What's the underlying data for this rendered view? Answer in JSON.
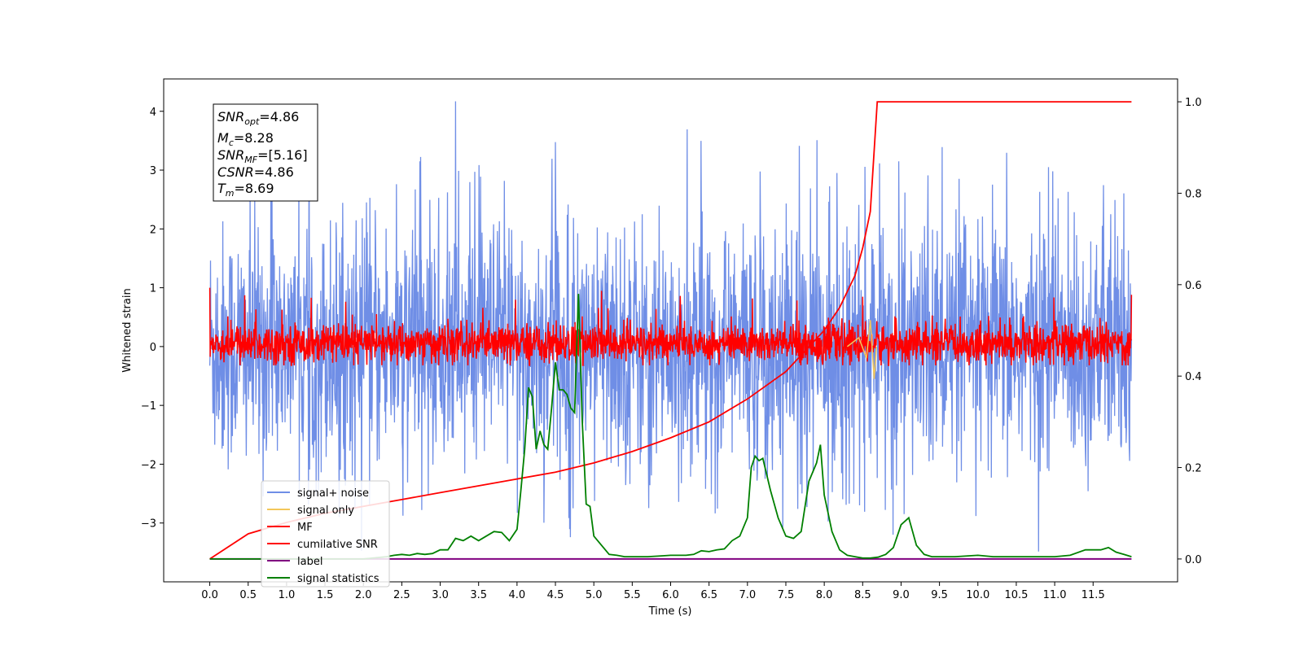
{
  "chart_data": {
    "type": "line",
    "xlabel": "Time (s)",
    "ylabel": "Whitened strain",
    "xlim": [
      -0.6,
      12.6
    ],
    "ylim": [
      -4.0,
      4.55
    ],
    "y2lim": [
      -0.05,
      1.05
    ],
    "xticks": [
      0.0,
      0.5,
      1.0,
      1.5,
      2.0,
      2.5,
      3.0,
      3.5,
      4.0,
      4.5,
      5.0,
      5.5,
      6.0,
      6.5,
      7.0,
      7.5,
      8.0,
      8.5,
      9.0,
      9.5,
      10.0,
      10.5,
      11.0,
      11.5
    ],
    "xtick_labels": [
      "0.0",
      "0.5",
      "1.0",
      "1.5",
      "2.0",
      "2.5",
      "3.0",
      "3.5",
      "4.0",
      "4.5",
      "5.0",
      "5.5",
      "6.0",
      "6.5",
      "7.0",
      "7.5",
      "8.0",
      "8.5",
      "9.0",
      "9.5",
      "10.0",
      "10.5",
      "11.0",
      "11.5"
    ],
    "yticks": [
      -3,
      -2,
      -1,
      0,
      1,
      2,
      3,
      4
    ],
    "ytick_labels": [
      "−3",
      "−2",
      "−1",
      "0",
      "1",
      "2",
      "3",
      "4"
    ],
    "y2ticks": [
      0.0,
      0.2,
      0.4,
      0.6,
      0.8,
      1.0
    ],
    "y2tick_labels": [
      "0.0",
      "0.2",
      "0.4",
      "0.6",
      "0.8",
      "1.0"
    ],
    "grid": false,
    "legend_position": "bottom-left",
    "colors": {
      "signal_noise": "#6f8ee6",
      "signal_only": "#f3c75a",
      "mf": "#ff0000",
      "cumulative_snr": "#ff0000",
      "label": "#800080",
      "signal_statistics": "#008000"
    },
    "series": [
      {
        "name": "signal+ noise",
        "axis": "left",
        "approx": "noise band, envelope approx -2.5 to 2.5 with spikes to 4.17 at 3.2 s"
      },
      {
        "name": "signal only",
        "axis": "left",
        "x": [
          8.3,
          8.45,
          8.55,
          8.6,
          8.65,
          8.68
        ],
        "values": [
          0.0,
          0.15,
          -0.2,
          0.45,
          -0.55,
          0.0
        ]
      },
      {
        "name": "MF",
        "axis": "left",
        "approx": "noise band, envelope approx -0.3 to 0.5 with spikes near 1.0"
      },
      {
        "name": "cumilative SNR",
        "axis": "right",
        "x": [
          0.0,
          0.5,
          1.0,
          1.5,
          2.0,
          2.5,
          3.0,
          3.5,
          4.0,
          4.5,
          5.0,
          5.5,
          6.0,
          6.5,
          7.0,
          7.5,
          8.0,
          8.2,
          8.4,
          8.5,
          8.6,
          8.69,
          12.0
        ],
        "values": [
          0.0,
          0.055,
          0.08,
          0.1,
          0.115,
          0.13,
          0.145,
          0.16,
          0.175,
          0.19,
          0.21,
          0.235,
          0.265,
          0.3,
          0.35,
          0.41,
          0.5,
          0.55,
          0.62,
          0.68,
          0.76,
          1.0,
          1.0
        ]
      },
      {
        "name": "label",
        "axis": "right",
        "x": [
          0.0,
          12.0
        ],
        "values": [
          0.0,
          0.0
        ]
      },
      {
        "name": "signal statistics",
        "axis": "right",
        "x": [
          0.0,
          0.5,
          1.0,
          1.5,
          2.0,
          2.3,
          2.4,
          2.5,
          2.6,
          2.7,
          2.8,
          2.9,
          3.0,
          3.1,
          3.2,
          3.3,
          3.4,
          3.5,
          3.6,
          3.7,
          3.8,
          3.9,
          4.0,
          4.05,
          4.1,
          4.15,
          4.2,
          4.25,
          4.3,
          4.35,
          4.4,
          4.45,
          4.5,
          4.55,
          4.6,
          4.65,
          4.7,
          4.75,
          4.8,
          4.85,
          4.9,
          4.95,
          5.0,
          5.05,
          5.1,
          5.15,
          5.2,
          5.3,
          5.4,
          5.5,
          5.7,
          5.9,
          6.0,
          6.2,
          6.3,
          6.4,
          6.5,
          6.6,
          6.7,
          6.8,
          6.9,
          7.0,
          7.05,
          7.1,
          7.15,
          7.2,
          7.3,
          7.4,
          7.5,
          7.6,
          7.7,
          7.8,
          7.9,
          7.95,
          8.0,
          8.05,
          8.1,
          8.2,
          8.3,
          8.4,
          8.5,
          8.6,
          8.7,
          8.8,
          8.9,
          9.0,
          9.1,
          9.2,
          9.3,
          9.4,
          9.5,
          9.7,
          10.0,
          10.2,
          10.5,
          11.0,
          11.2,
          11.4,
          11.6,
          11.7,
          11.8,
          11.9,
          12.0
        ],
        "values": [
          0.0,
          0.0,
          0.0,
          0.0,
          0.0,
          0.005,
          0.008,
          0.01,
          0.008,
          0.012,
          0.01,
          0.012,
          0.02,
          0.02,
          0.045,
          0.04,
          0.05,
          0.04,
          0.05,
          0.06,
          0.058,
          0.04,
          0.065,
          0.15,
          0.24,
          0.375,
          0.355,
          0.24,
          0.28,
          0.25,
          0.24,
          0.33,
          0.43,
          0.37,
          0.37,
          0.36,
          0.33,
          0.32,
          0.58,
          0.3,
          0.12,
          0.115,
          0.05,
          0.04,
          0.03,
          0.02,
          0.01,
          0.008,
          0.005,
          0.005,
          0.005,
          0.007,
          0.008,
          0.008,
          0.01,
          0.018,
          0.016,
          0.02,
          0.022,
          0.04,
          0.05,
          0.09,
          0.2,
          0.225,
          0.215,
          0.22,
          0.15,
          0.09,
          0.05,
          0.045,
          0.06,
          0.17,
          0.21,
          0.25,
          0.14,
          0.1,
          0.06,
          0.02,
          0.008,
          0.005,
          0.002,
          0.002,
          0.004,
          0.01,
          0.025,
          0.075,
          0.09,
          0.03,
          0.01,
          0.005,
          0.005,
          0.005,
          0.008,
          0.005,
          0.005,
          0.005,
          0.008,
          0.02,
          0.02,
          0.025,
          0.015,
          0.01,
          0.005
        ]
      }
    ]
  },
  "stats_box": {
    "line1_main": "SNR",
    "line1_sub": "opt",
    "line1_value": "=4.86",
    "line2_main": "M",
    "line2_sub": "c",
    "line2_value": "=8.28",
    "line3_main": "SNR",
    "line3_sub": "MF",
    "line3_value": "=[5.16]",
    "line4_main": "CSNR",
    "line4_value": "=4.86",
    "line5_main": "T",
    "line5_sub": "m",
    "line5_value": "=8.69"
  }
}
